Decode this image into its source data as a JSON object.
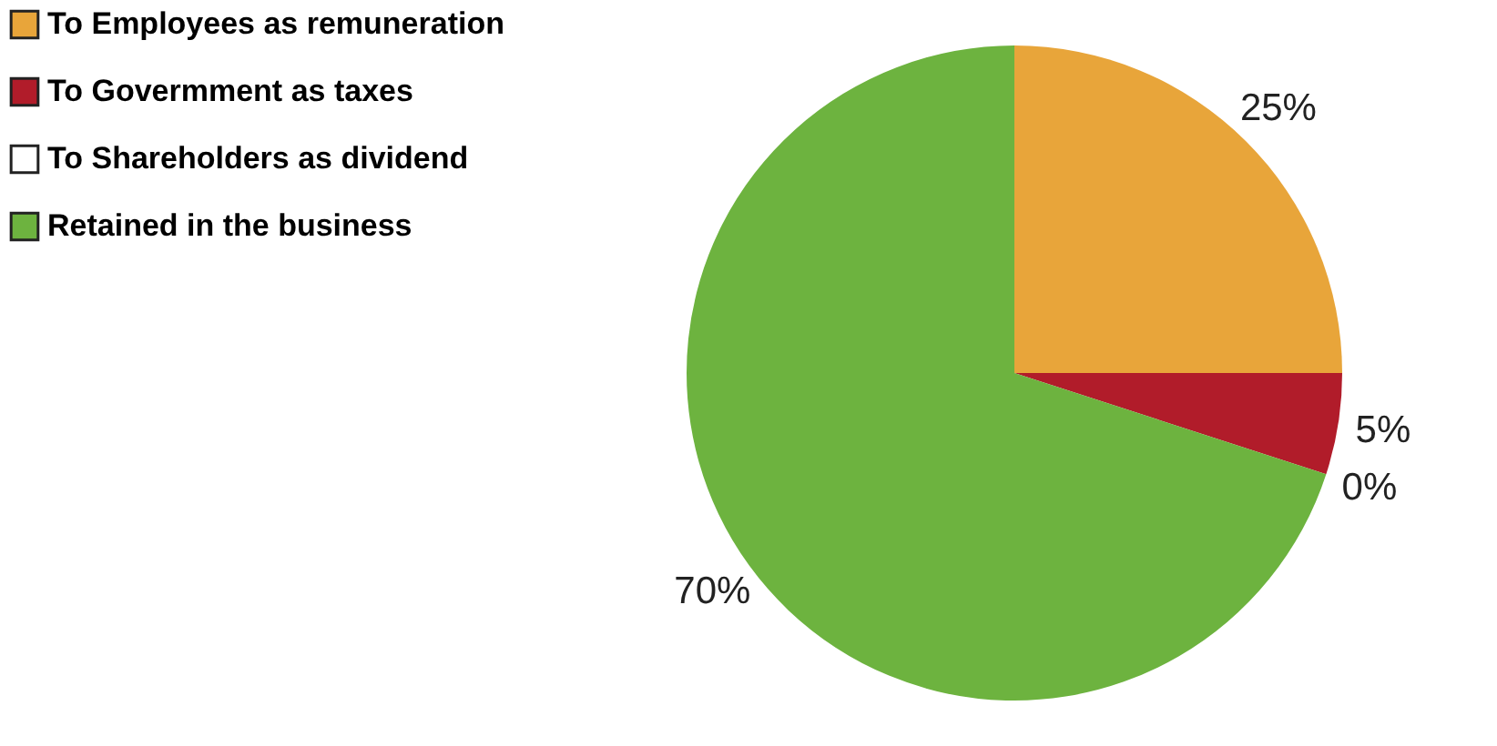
{
  "chart_data": {
    "type": "pie",
    "categories": [
      "To Employees as remuneration",
      "To Govermment as taxes",
      "To Shareholders as dividend",
      "Retained in the business"
    ],
    "values": [
      25,
      5,
      0,
      70
    ],
    "colors": [
      "#e8a53a",
      "#b11c2a",
      "#ffffff",
      "#6db33f"
    ],
    "value_labels": [
      "25%",
      "5%",
      "0%",
      "70%"
    ],
    "legend": "left"
  }
}
